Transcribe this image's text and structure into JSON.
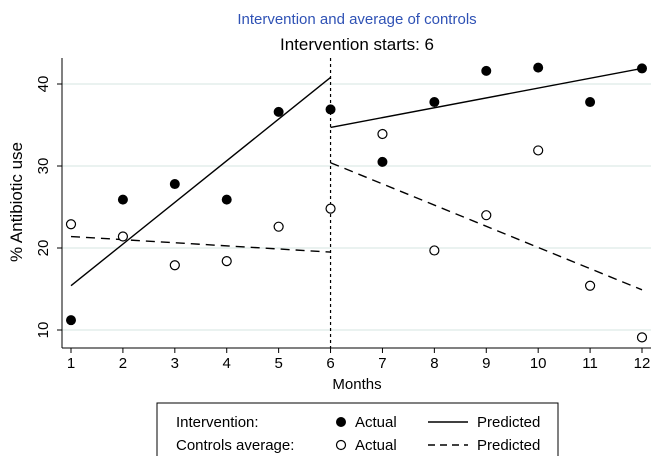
{
  "chart_data": {
    "type": "scatter",
    "title": "Intervention and average of controls",
    "subtitle": "Intervention starts: 6",
    "xlabel": "Months",
    "ylabel": "% Antibiotic use",
    "xlim": [
      1,
      12
    ],
    "ylim": [
      9,
      42
    ],
    "x_ticks": [
      1,
      2,
      3,
      4,
      5,
      6,
      7,
      8,
      9,
      10,
      11,
      12
    ],
    "y_ticks": [
      10,
      20,
      30,
      40
    ],
    "grid": "horizontal",
    "intervention_month": 6,
    "colors": {
      "title": "#2f52b5",
      "marks": "#000000",
      "grid": "#d6e6e2"
    },
    "x": [
      1,
      2,
      3,
      4,
      5,
      6,
      7,
      8,
      9,
      10,
      11,
      12
    ],
    "series": [
      {
        "name": "Actual",
        "group": "Intervention",
        "marker": "filled",
        "values": [
          11.2,
          25.9,
          27.8,
          25.9,
          36.6,
          36.9,
          30.5,
          37.8,
          41.6,
          42.0,
          37.8,
          41.9
        ]
      },
      {
        "name": "Actual",
        "group": "Controls average",
        "marker": "hollow",
        "values": [
          22.9,
          21.4,
          17.9,
          18.4,
          22.6,
          24.8,
          33.9,
          19.7,
          24.0,
          31.9,
          15.4,
          9.1
        ]
      }
    ],
    "fitted_lines": [
      {
        "name": "Predicted",
        "group": "Intervention",
        "style": "solid",
        "x": [
          1,
          6
        ],
        "y": [
          15.4,
          40.8
        ]
      },
      {
        "name": "Predicted",
        "group": "Intervention",
        "style": "solid",
        "x": [
          6,
          12
        ],
        "y": [
          34.7,
          41.9
        ]
      },
      {
        "name": "Predicted",
        "group": "Controls average",
        "style": "dashed",
        "x": [
          1,
          6
        ],
        "y": [
          21.4,
          19.5
        ]
      },
      {
        "name": "Predicted",
        "group": "Controls average",
        "style": "dashed",
        "x": [
          6,
          12
        ],
        "y": [
          30.4,
          14.9
        ]
      }
    ],
    "legend": {
      "placement": "bottom",
      "rows": [
        {
          "label": "Intervention:",
          "marker_label": "Actual",
          "line_label": "Predicted"
        },
        {
          "label": "Controls average:",
          "marker_label": "Actual",
          "line_label": "Predicted"
        }
      ]
    }
  }
}
